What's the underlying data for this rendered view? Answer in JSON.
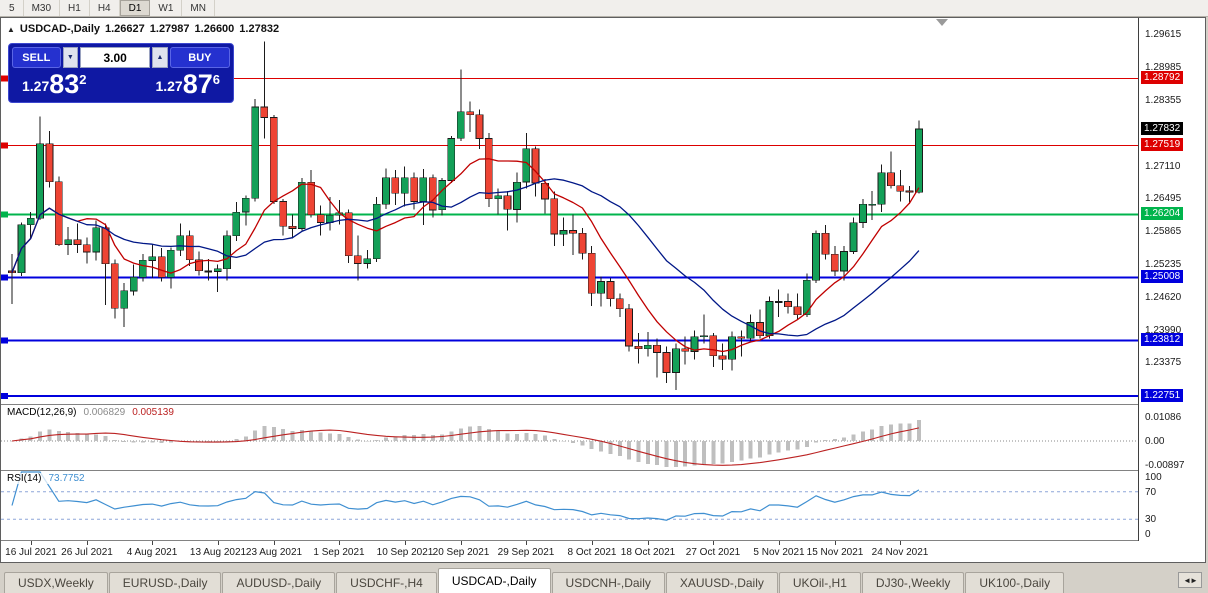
{
  "toolbar": {
    "timeframes": [
      "5",
      "M30",
      "H1",
      "H4",
      "D1",
      "W1",
      "MN"
    ],
    "active_timeframe": "D1"
  },
  "title_bar": {
    "symbol": "USDCAD-,Daily",
    "open": "1.26627",
    "high": "1.27987",
    "low": "1.26600",
    "close": "1.27832"
  },
  "trade_panel": {
    "sell_label": "SELL",
    "buy_label": "BUY",
    "volume": "3.00",
    "sell_price": {
      "prefix": "1.27",
      "digits": "83",
      "point": "2"
    },
    "buy_price": {
      "prefix": "1.27",
      "digits": "87",
      "point": "6"
    }
  },
  "icons": {
    "chart": "▲",
    "dropdown": "▼",
    "spin_up": "▲",
    "spin_down": "▼",
    "tab_scroll": "◄►"
  },
  "chart_data": {
    "type": "candlestick",
    "symbol": "USDCAD-,Daily",
    "price_range": [
      1.226,
      1.2994
    ],
    "current_price": "1.27832",
    "y_ticks": [
      "1.29615",
      "1.28985",
      "1.28355",
      "1.27110",
      "1.26495",
      "1.25865",
      "1.25235",
      "1.24620",
      "1.23990",
      "1.23375"
    ],
    "h_lines": [
      {
        "price": 1.28792,
        "color": "#dd0000",
        "width": 1
      },
      {
        "price": 1.27519,
        "color": "#dd0000",
        "width": 1
      },
      {
        "price": 1.26204,
        "color": "#00b44c",
        "width": 2
      },
      {
        "price": 1.25008,
        "color": "#0000dd",
        "width": 2
      },
      {
        "price": 1.23812,
        "color": "#0000dd",
        "width": 2
      },
      {
        "price": 1.22751,
        "color": "#0000dd",
        "width": 2
      }
    ],
    "colors": {
      "up": "#13a058",
      "down": "#ee4434",
      "wick": "#1a1a1a"
    },
    "moving_averages": [
      {
        "period": 8,
        "color": "#c00000"
      },
      {
        "period": 20,
        "color": "#001787"
      }
    ],
    "x_labels": [
      {
        "text": "16 Jul 2021",
        "i": 2
      },
      {
        "text": "26 Jul 2021",
        "i": 8
      },
      {
        "text": "4 Aug 2021",
        "i": 15
      },
      {
        "text": "13 Aug 2021",
        "i": 22
      },
      {
        "text": "23 Aug 2021",
        "i": 28
      },
      {
        "text": "1 Sep 2021",
        "i": 35
      },
      {
        "text": "10 Sep 2021",
        "i": 42
      },
      {
        "text": "20 Sep 2021",
        "i": 48
      },
      {
        "text": "29 Sep 2021",
        "i": 55
      },
      {
        "text": "8 Oct 2021",
        "i": 62
      },
      {
        "text": "18 Oct 2021",
        "i": 68
      },
      {
        "text": "27 Oct 2021",
        "i": 75
      },
      {
        "text": "5 Nov 2021",
        "i": 82
      },
      {
        "text": "15 Nov 2021",
        "i": 88
      },
      {
        "text": "24 Nov 2021",
        "i": 95
      }
    ],
    "candles": [
      [
        1.2513,
        1.2545,
        1.245,
        1.251
      ],
      [
        1.251,
        1.2605,
        1.2503,
        1.2601
      ],
      [
        1.2601,
        1.2625,
        1.2575,
        1.2613
      ],
      [
        1.2613,
        1.2807,
        1.261,
        1.2755
      ],
      [
        1.2755,
        1.2779,
        1.2672,
        1.2683
      ],
      [
        1.2683,
        1.2693,
        1.256,
        1.2563
      ],
      [
        1.2563,
        1.2597,
        1.2543,
        1.2572
      ],
      [
        1.2572,
        1.2603,
        1.2547,
        1.2563
      ],
      [
        1.2563,
        1.2577,
        1.2527,
        1.2549
      ],
      [
        1.2549,
        1.2609,
        1.2533,
        1.2595
      ],
      [
        1.2595,
        1.2603,
        1.2448,
        1.2527
      ],
      [
        1.2527,
        1.2535,
        1.2423,
        1.2442
      ],
      [
        1.2442,
        1.249,
        1.2406,
        1.2475
      ],
      [
        1.2475,
        1.2525,
        1.2466,
        1.2501
      ],
      [
        1.2501,
        1.2545,
        1.2493,
        1.2533
      ],
      [
        1.2533,
        1.2563,
        1.25,
        1.254
      ],
      [
        1.254,
        1.2557,
        1.2493,
        1.2501
      ],
      [
        1.2501,
        1.2558,
        1.248,
        1.2552
      ],
      [
        1.2552,
        1.2603,
        1.2541,
        1.258
      ],
      [
        1.258,
        1.259,
        1.2522,
        1.2534
      ],
      [
        1.2534,
        1.255,
        1.2504,
        1.2513
      ],
      [
        1.2513,
        1.2536,
        1.2495,
        1.2512
      ],
      [
        1.2512,
        1.2525,
        1.2473,
        1.2517
      ],
      [
        1.2517,
        1.259,
        1.2495,
        1.258
      ],
      [
        1.258,
        1.2644,
        1.257,
        1.2625
      ],
      [
        1.2625,
        1.2656,
        1.2599,
        1.2651
      ],
      [
        1.2651,
        1.284,
        1.2645,
        1.2825
      ],
      [
        1.2825,
        1.2949,
        1.2765,
        1.2805
      ],
      [
        1.2805,
        1.281,
        1.264,
        1.2645
      ],
      [
        1.2645,
        1.265,
        1.258,
        1.2598
      ],
      [
        1.2598,
        1.262,
        1.2575,
        1.2594
      ],
      [
        1.2594,
        1.269,
        1.259,
        1.2682
      ],
      [
        1.2682,
        1.2705,
        1.2615,
        1.262
      ],
      [
        1.262,
        1.2637,
        1.258,
        1.2605
      ],
      [
        1.2605,
        1.2654,
        1.259,
        1.2619
      ],
      [
        1.2619,
        1.2648,
        1.2601,
        1.2624
      ],
      [
        1.2624,
        1.263,
        1.2528,
        1.2542
      ],
      [
        1.2542,
        1.258,
        1.2495,
        1.2527
      ],
      [
        1.2527,
        1.2553,
        1.2518,
        1.2536
      ],
      [
        1.2536,
        1.2654,
        1.253,
        1.264
      ],
      [
        1.264,
        1.2708,
        1.2631,
        1.269
      ],
      [
        1.269,
        1.2705,
        1.2638,
        1.2661
      ],
      [
        1.2661,
        1.2712,
        1.2636,
        1.269
      ],
      [
        1.269,
        1.27,
        1.263,
        1.2645
      ],
      [
        1.2645,
        1.2707,
        1.26,
        1.269
      ],
      [
        1.269,
        1.2696,
        1.2615,
        1.2629
      ],
      [
        1.2629,
        1.269,
        1.2618,
        1.2685
      ],
      [
        1.2685,
        1.277,
        1.268,
        1.2765
      ],
      [
        1.2765,
        1.2896,
        1.276,
        1.2816
      ],
      [
        1.2816,
        1.2835,
        1.2777,
        1.281
      ],
      [
        1.281,
        1.282,
        1.2745,
        1.2765
      ],
      [
        1.2765,
        1.2775,
        1.2635,
        1.265
      ],
      [
        1.265,
        1.267,
        1.262,
        1.2656
      ],
      [
        1.2656,
        1.2665,
        1.259,
        1.263
      ],
      [
        1.263,
        1.27,
        1.2605,
        1.2682
      ],
      [
        1.2682,
        1.2775,
        1.267,
        1.2745
      ],
      [
        1.2745,
        1.275,
        1.2655,
        1.268
      ],
      [
        1.268,
        1.2688,
        1.2622,
        1.265
      ],
      [
        1.265,
        1.2664,
        1.256,
        1.2583
      ],
      [
        1.2583,
        1.2615,
        1.256,
        1.259
      ],
      [
        1.259,
        1.262,
        1.2543,
        1.2585
      ],
      [
        1.2585,
        1.2595,
        1.2535,
        1.2547
      ],
      [
        1.2547,
        1.256,
        1.2446,
        1.2471
      ],
      [
        1.2471,
        1.2502,
        1.2445,
        1.2493
      ],
      [
        1.2493,
        1.25,
        1.2445,
        1.246
      ],
      [
        1.246,
        1.247,
        1.2425,
        1.2441
      ],
      [
        1.2441,
        1.245,
        1.236,
        1.237
      ],
      [
        1.237,
        1.2395,
        1.2337,
        1.2365
      ],
      [
        1.2365,
        1.2397,
        1.235,
        1.2372
      ],
      [
        1.2372,
        1.2385,
        1.231,
        1.2358
      ],
      [
        1.2358,
        1.2369,
        1.23,
        1.232
      ],
      [
        1.232,
        1.2375,
        1.2287,
        1.2365
      ],
      [
        1.2365,
        1.2388,
        1.2335,
        1.236
      ],
      [
        1.236,
        1.24,
        1.2345,
        1.2388
      ],
      [
        1.2388,
        1.243,
        1.2375,
        1.239
      ],
      [
        1.239,
        1.2395,
        1.233,
        1.2352
      ],
      [
        1.2352,
        1.2375,
        1.2325,
        1.2345
      ],
      [
        1.2345,
        1.2398,
        1.2324,
        1.2388
      ],
      [
        1.2388,
        1.24,
        1.235,
        1.2385
      ],
      [
        1.2385,
        1.243,
        1.238,
        1.2415
      ],
      [
        1.2415,
        1.244,
        1.2385,
        1.239
      ],
      [
        1.239,
        1.2464,
        1.2385,
        1.2455
      ],
      [
        1.2455,
        1.2478,
        1.2425,
        1.2455
      ],
      [
        1.2455,
        1.247,
        1.2432,
        1.2445
      ],
      [
        1.2445,
        1.247,
        1.242,
        1.243
      ],
      [
        1.243,
        1.2508,
        1.2425,
        1.2495
      ],
      [
        1.2495,
        1.259,
        1.249,
        1.2585
      ],
      [
        1.2585,
        1.26,
        1.2535,
        1.2545
      ],
      [
        1.2545,
        1.256,
        1.2503,
        1.2513
      ],
      [
        1.2513,
        1.256,
        1.2495,
        1.255
      ],
      [
        1.255,
        1.2615,
        1.2545,
        1.2605
      ],
      [
        1.2605,
        1.265,
        1.2595,
        1.264
      ],
      [
        1.264,
        1.2665,
        1.261,
        1.264
      ],
      [
        1.264,
        1.2715,
        1.2625,
        1.27
      ],
      [
        1.27,
        1.274,
        1.267,
        1.2675
      ],
      [
        1.2675,
        1.2705,
        1.2645,
        1.2665
      ],
      [
        1.2665,
        1.2675,
        1.264,
        1.2663
      ],
      [
        1.26627,
        1.27987,
        1.266,
        1.27832
      ]
    ],
    "indicators": {
      "macd": {
        "name": "MACD(12,26,9)",
        "value_main": "0.006829",
        "value_signal": "0.005139",
        "axis_labels": [
          "0.01086",
          "0.00",
          "-0.00897"
        ],
        "histogram_color": "#bfbfbf",
        "signal_color": "#bb2222"
      },
      "rsi": {
        "name": "RSI(14)",
        "value": "73.7752",
        "axis_labels": [
          "100",
          "70",
          "30",
          "0"
        ],
        "level_lines": [
          70,
          30
        ],
        "level_color": "#8ea6d8",
        "line_color": "#3f8fd1"
      }
    }
  },
  "tabs": {
    "items": [
      "USDX,Weekly",
      "EURUSD-,Daily",
      "AUDUSD-,Daily",
      "USDCHF-,H4",
      "USDCAD-,Daily",
      "USDCNH-,Daily",
      "XAUUSD-,Daily",
      "UKOil-,H1",
      "DJ30-,Weekly",
      "UK100-,Daily"
    ],
    "active": "USDCAD-,Daily"
  }
}
